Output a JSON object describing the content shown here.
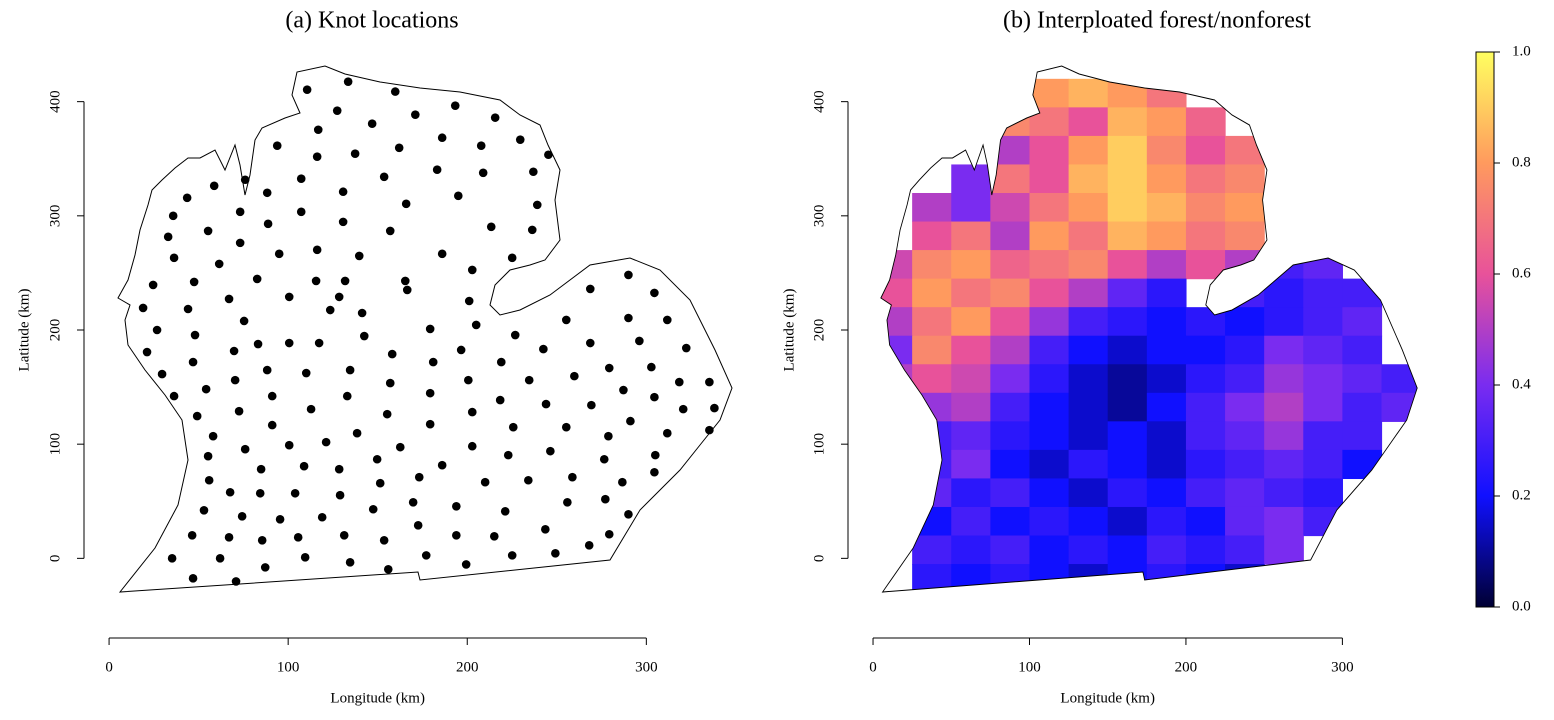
{
  "chart_data": [
    {
      "type": "scatter",
      "title": "(a) Knot locations",
      "x_label": "Longitude (km)",
      "y_label": "Latitude (km)",
      "xlim": [
        -14,
        359
      ],
      "ylim": [
        -54,
        454
      ],
      "xticks": [
        0,
        100,
        200,
        300
      ],
      "yticks": [
        0,
        100,
        200,
        300,
        400
      ],
      "color": "#000000",
      "x": [
        133.5,
        110.6,
        159.8,
        193.3,
        127.4,
        171,
        215.6,
        116.8,
        146.9,
        229.6,
        93.9,
        186,
        162,
        207.8,
        116.2,
        137.4,
        245.3,
        58.7,
        76,
        107.3,
        183.2,
        208.9,
        236.9,
        130.7,
        153.6,
        88.3,
        43.6,
        73.2,
        107.3,
        165.9,
        195,
        239.1,
        35.8,
        130.7,
        88.8,
        157,
        213.4,
        55.3,
        236.3,
        33,
        73.2,
        116.2,
        186,
        139.7,
        202.8,
        225.1,
        36.3,
        61.5,
        95,
        115.6,
        165.4,
        47.5,
        131.8,
        82.7,
        24.6,
        268.7,
        290,
        304.5,
        100.6,
        166.5,
        128.5,
        67,
        201.1,
        19,
        44.1,
        255.3,
        75.4,
        123.5,
        141.3,
        226.8,
        290,
        311.7,
        26.8,
        48,
        100.6,
        117.3,
        179.3,
        205,
        142.5,
        83.2,
        268.7,
        296.1,
        322.3,
        242.5,
        21.2,
        196.6,
        158.1,
        219,
        69.8,
        46.9,
        88.3,
        181,
        110.1,
        279.3,
        302.8,
        259.8,
        29.6,
        134.6,
        200.6,
        234.6,
        70.4,
        157,
        318.4,
        335.2,
        54.2,
        179.3,
        91.1,
        287.2,
        36.3,
        133,
        218.4,
        304.5,
        244,
        269.3,
        112.8,
        72.6,
        338,
        320.6,
        155.3,
        49.2,
        202.8,
        291.1,
        91.1,
        179.3,
        225.7,
        255.3,
        138.5,
        335.2,
        58.1,
        278.8,
        311.7,
        121.2,
        100.6,
        76,
        202.8,
        162.6,
        246.4,
        222.9,
        276.5,
        55.3,
        305,
        149.7,
        186,
        108.9,
        84.9,
        128.5,
        304.5,
        258.7,
        173.2,
        210,
        55.9,
        234.1,
        286.6,
        151.4,
        67.6,
        84.4,
        103.9,
        129,
        169.8,
        277.1,
        255.9,
        193.9,
        53,
        147.5,
        221.2,
        74.3,
        119,
        290,
        172.6,
        95.5,
        243.6,
        46.4,
        67,
        131.3,
        85.5,
        105.6,
        215.1,
        193.9,
        279.3,
        153.6,
        268.1,
        35.2,
        62,
        109.5,
        134.6,
        177.1,
        225.1,
        249.2,
        155.9,
        199.4,
        87.2,
        46.9,
        70.9
      ],
      "y": [
        417.5,
        410.5,
        408.8,
        396.5,
        392.1,
        388.6,
        386,
        375.4,
        380.7,
        366.7,
        361.4,
        368.4,
        359.6,
        361.4,
        351.8,
        354.4,
        353.5,
        326.3,
        331.6,
        332.5,
        340.4,
        337.7,
        338.6,
        321.1,
        334.2,
        320.2,
        315.8,
        303.5,
        303.5,
        310.5,
        317.5,
        309.6,
        300,
        294.7,
        293,
        286.8,
        290.4,
        286.8,
        287.7,
        281.6,
        276.3,
        270.2,
        266.7,
        264.9,
        252.6,
        263.2,
        263.2,
        257.9,
        266.7,
        243,
        243,
        242.1,
        243,
        244.7,
        239.5,
        236,
        248.2,
        232.5,
        229,
        235.1,
        229,
        227.2,
        225.4,
        219.3,
        218.4,
        208.8,
        207.9,
        217.5,
        214.9,
        195.6,
        210.5,
        208.8,
        200,
        195.6,
        188.6,
        188.6,
        200.9,
        204.4,
        194.7,
        187.7,
        188.6,
        190.4,
        184.2,
        183.3,
        180.7,
        182.5,
        178.9,
        171.9,
        181.6,
        171.9,
        164.9,
        171.9,
        162.3,
        166.7,
        167.5,
        159.6,
        161.4,
        164.9,
        156.1,
        156.1,
        156.1,
        153.5,
        154.4,
        154.4,
        148.2,
        144.7,
        142.1,
        147.4,
        142.1,
        142.1,
        138.6,
        141.2,
        135.1,
        134.2,
        130.7,
        128.9,
        131.6,
        130.7,
        126.3,
        124.6,
        128.1,
        120.2,
        116.7,
        117.5,
        114.9,
        114.9,
        109.6,
        112.3,
        107,
        107,
        109.6,
        101.8,
        99.1,
        95.6,
        98.2,
        97.4,
        93.9,
        90.4,
        86.8,
        89.5,
        90.4,
        86.8,
        81.6,
        80.7,
        78.1,
        78.1,
        75.4,
        71.1,
        71.1,
        66.7,
        68.4,
        68.4,
        66.7,
        65.8,
        57.9,
        57,
        57,
        55.3,
        49.1,
        51.8,
        49.1,
        45.6,
        42.1,
        43,
        41.2,
        36.8,
        36,
        38.6,
        28.9,
        34.2,
        25.4,
        20.2,
        18.4,
        20.2,
        15.8,
        18.4,
        19.3,
        20.2,
        21.1,
        15.8,
        11.4,
        0,
        0,
        0.9,
        -3.5,
        2.6,
        2.6,
        4.4,
        -9.6,
        -5.3,
        -7.9,
        -17.5,
        -20.2
      ]
    },
    {
      "type": "heatmap",
      "title": "(b) Interploated forest/nonforest",
      "x_label": "Longitude (km)",
      "y_label": "Latitude (km)",
      "xlim": [
        -16,
        356
      ],
      "ylim": [
        -54,
        454
      ],
      "xticks": [
        0,
        100,
        200,
        300
      ],
      "yticks": [
        0,
        100,
        200,
        300,
        400
      ],
      "zlim": [
        0,
        1
      ],
      "zticks": [
        {
          "value": 0,
          "label": "0.0"
        },
        0.2,
        0.4,
        0.6,
        0.8,
        {
          "value": 1,
          "label": "1.0"
        }
      ],
      "colorscale": [
        "#000033",
        "#1010ff",
        "#7a2cf0",
        "#e8529a",
        "#ff9a5e",
        "#ffff60"
      ],
      "x": [
        12.5,
        37.5,
        62.5,
        87.5,
        112.5,
        137.5,
        162.5,
        187.5,
        212.5,
        237.5,
        262.5,
        287.5,
        312.5,
        337.5
      ],
      "y": [
        407.5,
        382.5,
        357.5,
        332.5,
        307.5,
        282.5,
        257.5,
        232.5,
        207.5,
        182.5,
        157.5,
        132.5,
        107.5,
        82.5,
        57.5,
        32.5,
        7.5,
        -17.5
      ],
      "z": [
        [
          null,
          null,
          null,
          null,
          0.8,
          0.85,
          0.8,
          0.7,
          null,
          null,
          null,
          null,
          null,
          null
        ],
        [
          null,
          null,
          null,
          0.75,
          0.7,
          0.6,
          0.85,
          0.8,
          0.65,
          null,
          null,
          null,
          null,
          null
        ],
        [
          null,
          null,
          null,
          0.5,
          0.6,
          0.8,
          0.9,
          0.75,
          0.6,
          0.7,
          null,
          null,
          null,
          null
        ],
        [
          null,
          null,
          0.4,
          0.7,
          0.6,
          0.85,
          0.9,
          0.8,
          0.7,
          0.75,
          null,
          null,
          null,
          null
        ],
        [
          null,
          0.5,
          0.4,
          0.55,
          0.7,
          0.8,
          0.9,
          0.85,
          0.75,
          0.8,
          null,
          null,
          null,
          null
        ],
        [
          null,
          0.6,
          0.7,
          0.5,
          0.8,
          0.7,
          0.85,
          0.8,
          0.7,
          0.75,
          null,
          null,
          null,
          null
        ],
        [
          0.55,
          0.75,
          0.8,
          0.65,
          0.7,
          0.75,
          0.6,
          0.5,
          0.6,
          0.5,
          0.3,
          0.35,
          null,
          null
        ],
        [
          0.6,
          0.8,
          0.7,
          0.75,
          0.6,
          0.5,
          0.35,
          0.25,
          null,
          0.3,
          0.25,
          0.3,
          0.3,
          null
        ],
        [
          0.5,
          0.7,
          0.8,
          0.6,
          0.45,
          0.3,
          0.25,
          0.2,
          0.25,
          0.2,
          0.25,
          0.3,
          0.35,
          null
        ],
        [
          0.4,
          0.75,
          0.6,
          0.5,
          0.3,
          0.2,
          0.15,
          0.2,
          0.2,
          0.25,
          0.4,
          0.35,
          0.3,
          null
        ],
        [
          0.5,
          0.6,
          0.55,
          0.4,
          0.25,
          0.15,
          0.1,
          0.15,
          0.25,
          0.3,
          0.45,
          0.4,
          0.35,
          0.3
        ],
        [
          null,
          0.45,
          0.5,
          0.3,
          0.2,
          0.15,
          0.1,
          0.2,
          0.3,
          0.4,
          0.5,
          0.4,
          0.3,
          0.35
        ],
        [
          null,
          0.3,
          0.35,
          0.25,
          0.2,
          0.15,
          0.2,
          0.15,
          0.3,
          0.35,
          0.45,
          0.3,
          0.3,
          null
        ],
        [
          null,
          0.3,
          0.4,
          0.2,
          0.15,
          0.25,
          0.2,
          0.15,
          0.25,
          0.3,
          0.35,
          0.3,
          0.2,
          null
        ],
        [
          null,
          0.35,
          0.25,
          0.3,
          0.2,
          0.15,
          0.25,
          0.2,
          0.3,
          0.35,
          0.3,
          0.25,
          null,
          null
        ],
        [
          null,
          0.2,
          0.3,
          0.2,
          0.25,
          0.2,
          0.15,
          0.25,
          0.2,
          0.35,
          0.4,
          0.3,
          null,
          null
        ],
        [
          null,
          0.3,
          0.25,
          0.3,
          0.2,
          0.25,
          0.2,
          0.3,
          0.25,
          0.3,
          0.4,
          null,
          null,
          null
        ],
        [
          null,
          0.25,
          0.2,
          0.25,
          0.2,
          0.15,
          0.2,
          0.25,
          0.2,
          0.15,
          null,
          null,
          null,
          null
        ]
      ]
    }
  ]
}
